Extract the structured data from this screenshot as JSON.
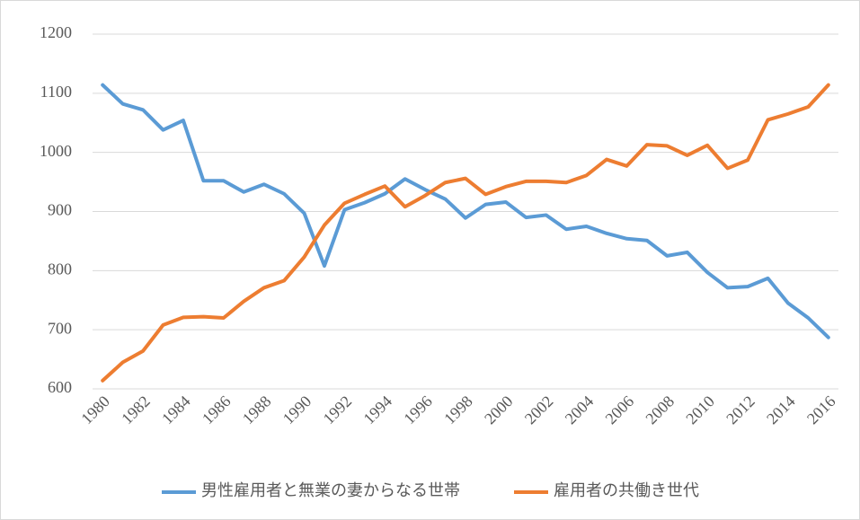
{
  "chart_data": {
    "type": "line",
    "categories": [
      "1980",
      null,
      "1982",
      null,
      "1984",
      null,
      "1986",
      null,
      "1988",
      null,
      "1990",
      null,
      "1992",
      null,
      "1994",
      null,
      "1996",
      null,
      "1998",
      null,
      "2000",
      null,
      "2002",
      null,
      "2004",
      null,
      "2006",
      null,
      "2008",
      null,
      "2010",
      null,
      "2012",
      null,
      "2014",
      null,
      "2016"
    ],
    "series": [
      {
        "name": "男性雇用者と無業の妻からなる世帯",
        "color": "#5b9bd5",
        "values": [
          1114,
          1082,
          1072,
          1038,
          1054,
          952,
          952,
          933,
          946,
          930,
          897,
          808,
          903,
          915,
          930,
          955,
          937,
          921,
          889,
          912,
          916,
          890,
          894,
          870,
          875,
          863,
          854,
          851,
          825,
          831,
          797,
          771,
          773,
          787,
          745,
          720,
          687
        ]
      },
      {
        "name": "雇用者の共働き世代",
        "color": "#ed7d31",
        "values": [
          614,
          645,
          664,
          708,
          721,
          722,
          720,
          748,
          771,
          783,
          823,
          877,
          914,
          929,
          943,
          908,
          927,
          949,
          956,
          929,
          942,
          951,
          951,
          949,
          961,
          988,
          977,
          1013,
          1011,
          995,
          1012,
          973,
          987,
          1055,
          1065,
          1077,
          1114
        ]
      }
    ],
    "ylim": [
      600,
      1200
    ],
    "yticks": [
      600,
      700,
      800,
      900,
      1000,
      1100,
      1200
    ],
    "grid": true,
    "legend": "bottom"
  }
}
